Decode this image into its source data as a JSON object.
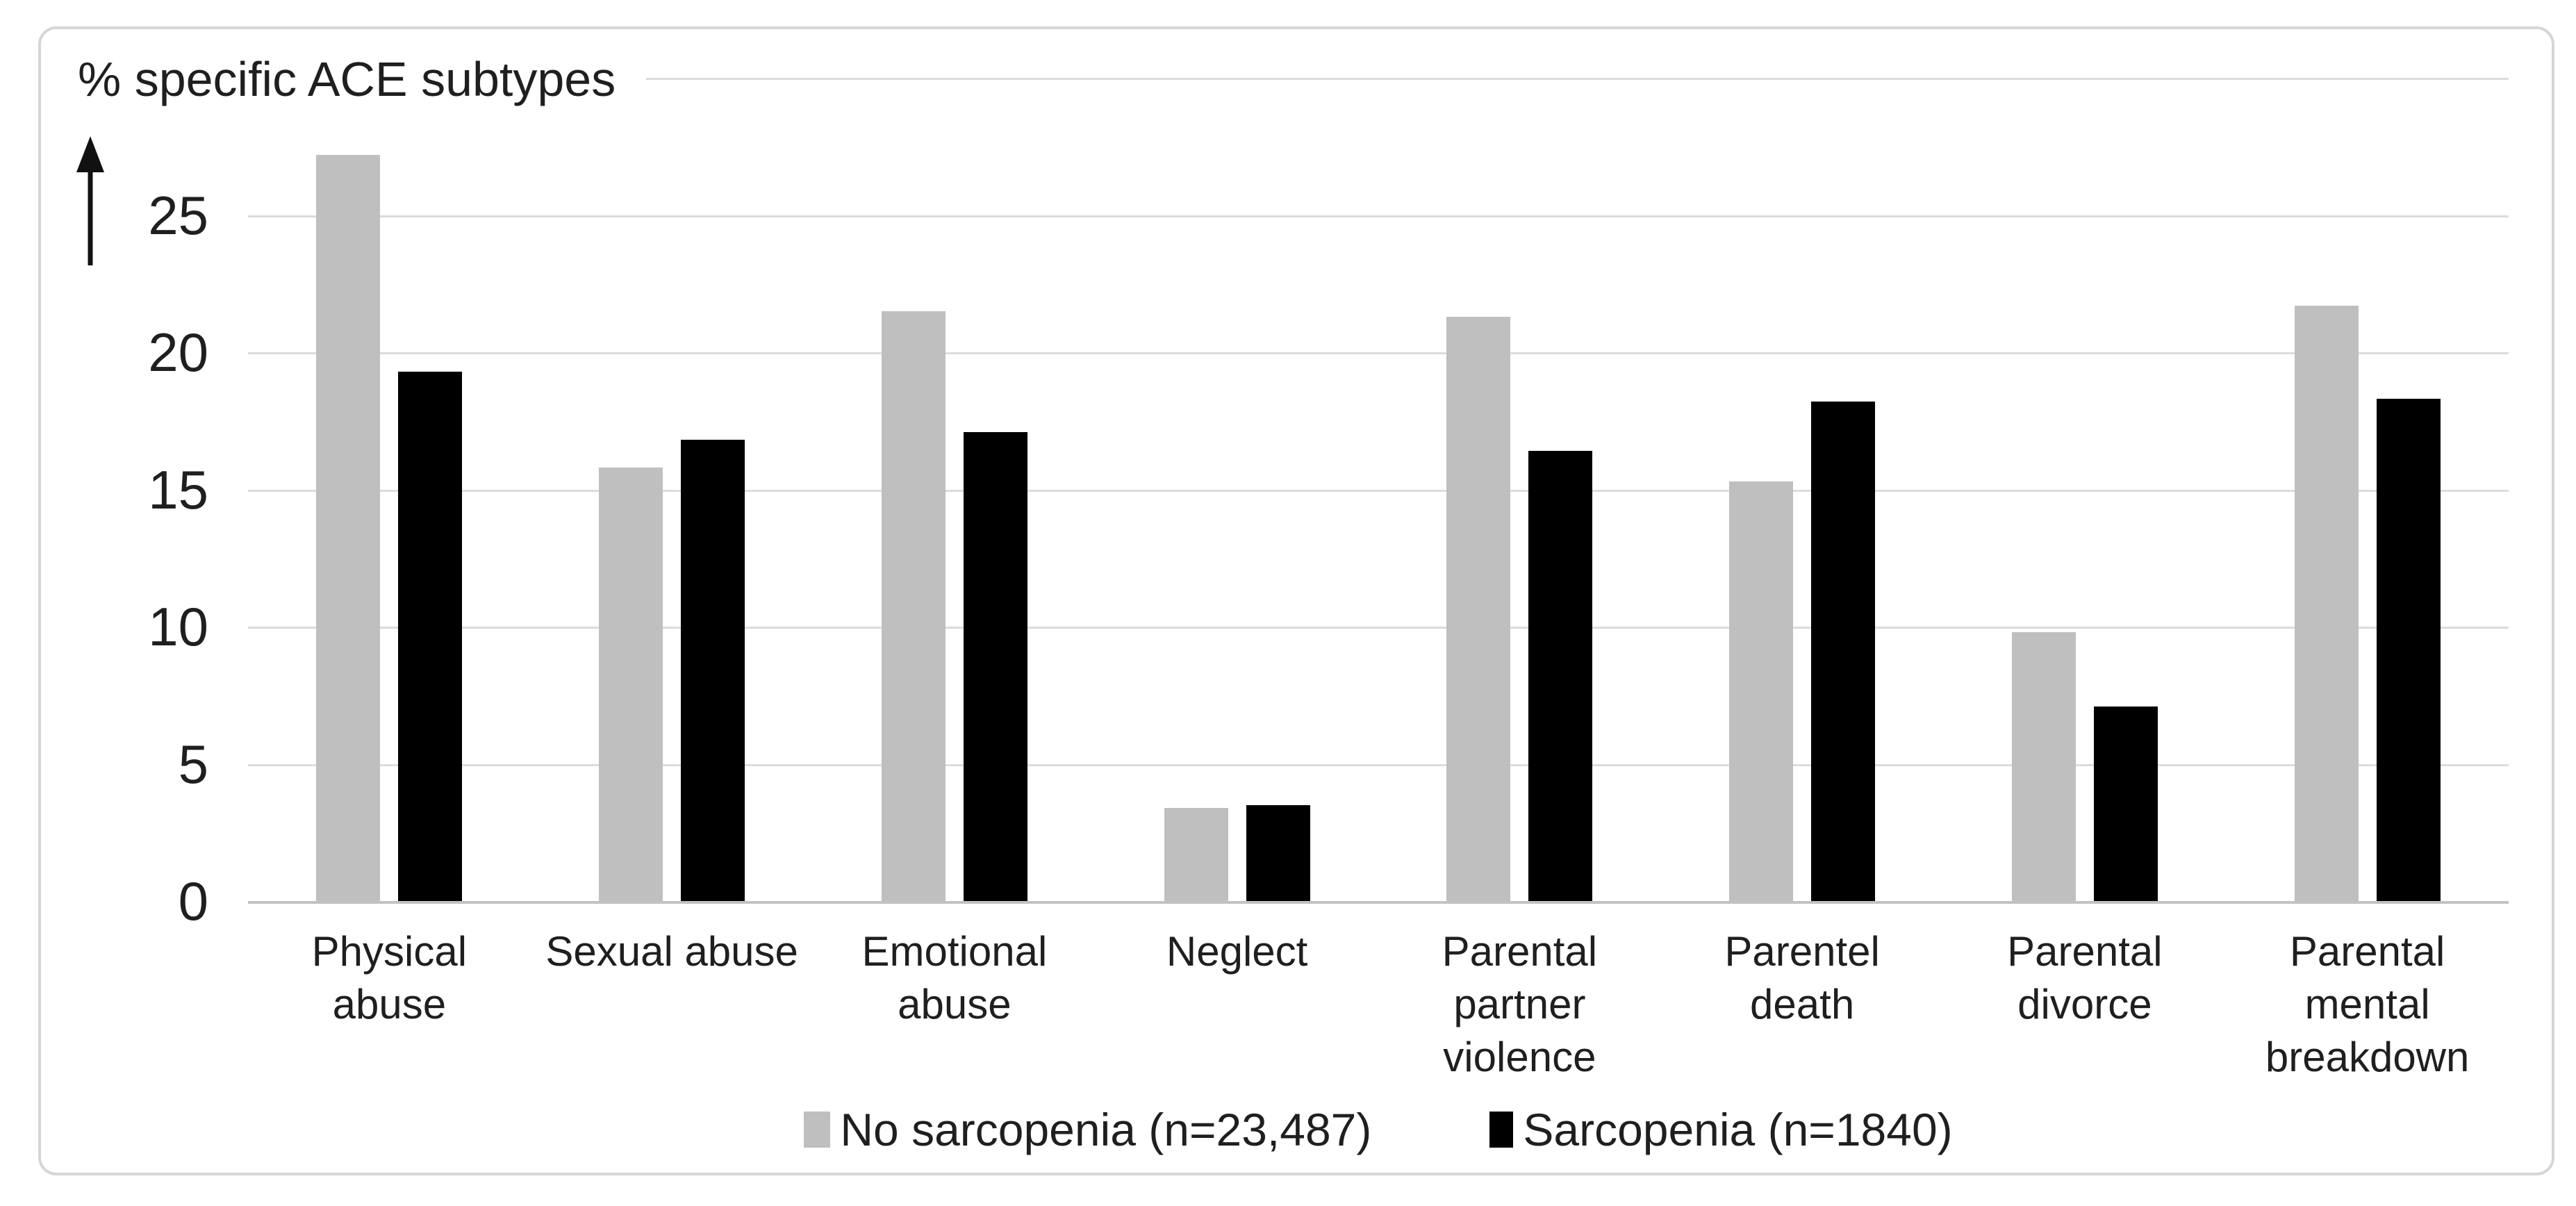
{
  "chart_data": {
    "type": "bar",
    "title": "% specific ACE subtypes",
    "categories": [
      "Physical\nabuse",
      "Sexual abuse",
      "Emotional\nabuse",
      "Neglect",
      "Parental\npartner\nviolence",
      "Parentel\ndeath",
      "Parental\ndivorce",
      "Parental\nmental\nbreakdown"
    ],
    "series": [
      {
        "name": "No sarcopenia (n=23,487)",
        "color": "#bfbfbf",
        "values": [
          27.2,
          15.8,
          21.5,
          3.4,
          21.3,
          15.3,
          9.8,
          21.7
        ]
      },
      {
        "name": "Sarcopenia (n=1840)",
        "color": "#000000",
        "values": [
          19.3,
          16.8,
          17.1,
          3.5,
          16.4,
          18.2,
          7.1,
          18.3
        ]
      }
    ],
    "ylabel": "% specific ACE subtypes",
    "ylim": [
      0,
      30
    ],
    "yticks": [
      0,
      5,
      10,
      15,
      20,
      25
    ],
    "gridline_values": [
      5,
      10,
      15,
      20,
      25,
      30
    ],
    "grid": true,
    "legend_position": "bottom"
  },
  "colors": {
    "bar_no_sarcopenia": "#bfbfbf",
    "bar_sarcopenia": "#000000",
    "gridline": "#dcdcdc",
    "baseline": "#c2c2c2",
    "frame_border": "#d6d6d6",
    "text": "#1f1f1f"
  }
}
